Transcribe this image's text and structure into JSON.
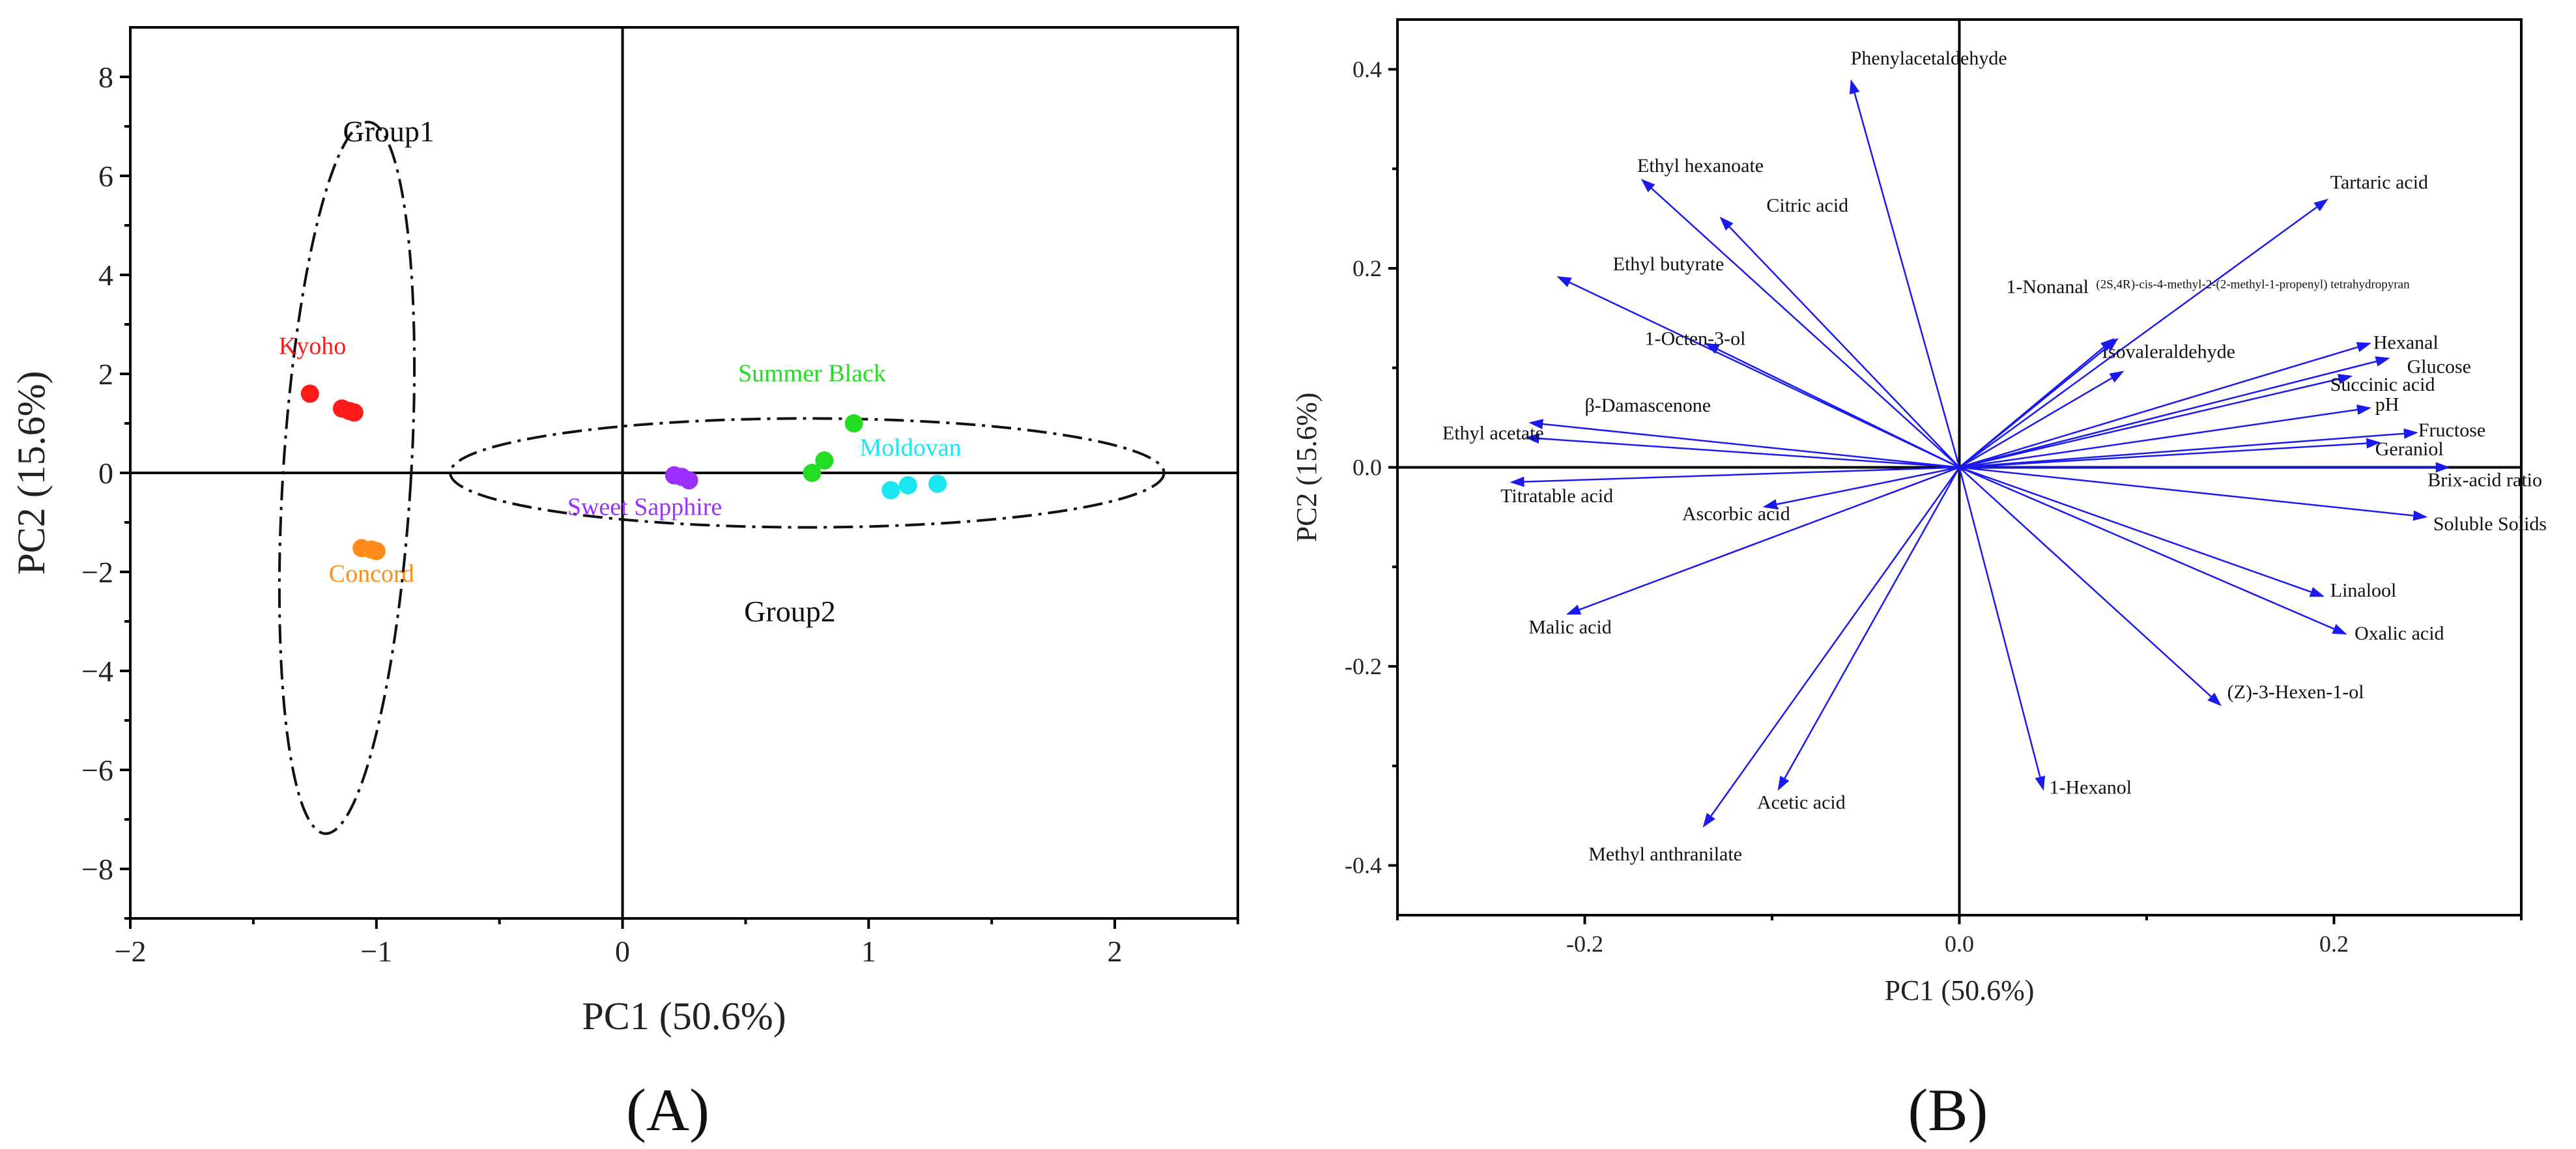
{
  "panel_labels": [
    "(A)",
    "(B)"
  ],
  "colors": {
    "Kyoho": "#ff1a1a",
    "Concord": "#ff8c1a",
    "Sweet Sapphire": "#9b30ff",
    "Summer Black": "#22dd22",
    "Moldovan": "#1ae6f0",
    "arrow": "#1a1aee"
  },
  "chart_data": [
    {
      "type": "scatter",
      "panel": "(A)",
      "xlabel": "PC1 (50.6%)",
      "ylabel": "PC2 (15.6%)",
      "xlim": [
        -2,
        2.5
      ],
      "ylim": [
        -9,
        9
      ],
      "xticks": [
        "−2",
        "−1",
        "0",
        "1",
        "2"
      ],
      "yticks": [
        "−8",
        "−6",
        "−4",
        "−2",
        "0",
        "2",
        "4",
        "6",
        "8"
      ],
      "groups": [
        {
          "label": "Group1",
          "center": [
            -1.12,
            -0.1
          ],
          "semi_axes": [
            0.26,
            7.2
          ],
          "tilt_deg": 3.5,
          "label_at": [
            -0.95,
            6.7
          ]
        },
        {
          "label": "Group2",
          "center": [
            0.75,
            0.0
          ],
          "semi_axes": [
            1.45,
            1.1
          ],
          "tilt_deg": 0,
          "label_at": [
            0.68,
            -3.0
          ]
        }
      ],
      "series": [
        {
          "name": "Kyoho",
          "label_at": [
            -1.26,
            2.4
          ],
          "points": [
            [
              -1.27,
              1.6
            ],
            [
              -1.14,
              1.3
            ],
            [
              -1.11,
              1.25
            ],
            [
              -1.09,
              1.22
            ]
          ]
        },
        {
          "name": "Concord",
          "label_at": [
            -1.02,
            -2.2
          ],
          "points": [
            [
              -1.06,
              -1.52
            ],
            [
              -1.02,
              -1.55
            ],
            [
              -1.0,
              -1.58
            ]
          ]
        },
        {
          "name": "Sweet Sapphire",
          "label_at": [
            0.09,
            -0.85
          ],
          "points": [
            [
              0.21,
              -0.05
            ],
            [
              0.24,
              -0.08
            ],
            [
              0.27,
              -0.15
            ]
          ]
        },
        {
          "name": "Summer Black",
          "label_at": [
            0.77,
            1.85
          ],
          "points": [
            [
              0.94,
              1.0
            ],
            [
              0.82,
              0.25
            ],
            [
              0.77,
              0.0
            ]
          ]
        },
        {
          "name": "Moldovan",
          "label_at": [
            1.17,
            0.35
          ],
          "points": [
            [
              1.09,
              -0.35
            ],
            [
              1.16,
              -0.25
            ],
            [
              1.28,
              -0.22
            ]
          ]
        }
      ]
    },
    {
      "type": "biplot",
      "panel": "(B)",
      "xlabel": "PC1 (50.6%)",
      "ylabel": "PC2 (15.6%)",
      "xlim": [
        -0.3,
        0.3
      ],
      "ylim": [
        -0.45,
        0.45
      ],
      "xticks": [
        "-0.2",
        "0.0",
        "0.2"
      ],
      "yticks": [
        "-0.4",
        "-0.2",
        "0.0",
        "0.2",
        "0.4"
      ],
      "loadings": [
        {
          "name": "Phenylacetaldehyde",
          "x": -0.058,
          "y": 0.39,
          "label_at": [
            -0.058,
            0.405
          ]
        },
        {
          "name": "Ethyl hexanoate",
          "x": -0.17,
          "y": 0.29,
          "label_at": [
            -0.172,
            0.297
          ]
        },
        {
          "name": "Citric acid",
          "x": -0.128,
          "y": 0.252,
          "label_at": [
            -0.103,
            0.257
          ]
        },
        {
          "name": "Ethyl butyrate",
          "x": -0.215,
          "y": 0.192,
          "label_at": [
            -0.185,
            0.198
          ]
        },
        {
          "name": "1-Octen-3-ol",
          "x": -0.136,
          "y": 0.125,
          "label_at": [
            -0.168,
            0.123
          ]
        },
        {
          "name": "β-Damascenone",
          "x": -0.23,
          "y": 0.045,
          "label_at": [
            -0.2,
            0.056
          ]
        },
        {
          "name": "Ethyl acetate",
          "x": -0.232,
          "y": 0.03,
          "label_at": [
            -0.276,
            0.028
          ]
        },
        {
          "name": "Titratable acid",
          "x": -0.24,
          "y": -0.015,
          "label_at": [
            -0.245,
            -0.035
          ]
        },
        {
          "name": "Ascorbic acid",
          "x": -0.105,
          "y": -0.04,
          "label_at": [
            -0.148,
            -0.053
          ]
        },
        {
          "name": "Malic acid",
          "x": -0.21,
          "y": -0.148,
          "label_at": [
            -0.23,
            -0.167
          ]
        },
        {
          "name": "Methyl anthranilate",
          "x": -0.137,
          "y": -0.362,
          "label_at": [
            -0.198,
            -0.395
          ]
        },
        {
          "name": "Acetic acid",
          "x": -0.097,
          "y": -0.325,
          "label_at": [
            -0.108,
            -0.343
          ]
        },
        {
          "name": "1-Hexanol",
          "x": 0.045,
          "y": -0.325,
          "label_at": [
            0.048,
            -0.328
          ]
        },
        {
          "name": "(Z)-3-Hexen-1-ol",
          "x": 0.14,
          "y": -0.24,
          "label_at": [
            0.143,
            -0.232
          ]
        },
        {
          "name": "Oxalic acid",
          "x": 0.207,
          "y": -0.168,
          "label_at": [
            0.211,
            -0.173
          ]
        },
        {
          "name": "Linalool",
          "x": 0.195,
          "y": -0.13,
          "label_at": [
            0.198,
            -0.13
          ]
        },
        {
          "name": "Soluble Solids",
          "x": 0.25,
          "y": -0.05,
          "label_at": [
            0.253,
            -0.063
          ]
        },
        {
          "name": "Brix-acid ratio",
          "x": 0.262,
          "y": 0.0,
          "label_at": [
            0.25,
            -0.019
          ]
        },
        {
          "name": "Geraniol",
          "x": 0.225,
          "y": 0.025,
          "label_at": [
            0.222,
            0.012
          ]
        },
        {
          "name": "Fructose",
          "x": 0.245,
          "y": 0.035,
          "label_at": [
            0.245,
            0.031
          ]
        },
        {
          "name": "pH",
          "x": 0.22,
          "y": 0.06,
          "label_at": [
            0.222,
            0.057
          ]
        },
        {
          "name": "Succinic acid",
          "x": 0.21,
          "y": 0.092,
          "label_at": [
            0.198,
            0.077
          ]
        },
        {
          "name": "Glucose",
          "x": 0.23,
          "y": 0.11,
          "label_at": [
            0.239,
            0.095
          ]
        },
        {
          "name": "Hexanal",
          "x": 0.22,
          "y": 0.125,
          "label_at": [
            0.221,
            0.119
          ]
        },
        {
          "name": "Tartaric acid",
          "x": 0.197,
          "y": 0.27,
          "label_at": [
            0.198,
            0.28
          ]
        },
        {
          "name": "Isovaleraldehyde",
          "x": 0.088,
          "y": 0.097,
          "label_at": [
            0.076,
            0.11
          ]
        },
        {
          "name": "1-Nonanal",
          "x": 0.085,
          "y": 0.13,
          "label_at": [
            0.025,
            0.175
          ]
        },
        {
          "name": "(2S,4R)-cis-4-methyl-2-(2-methyl-1-propenyl) tetrahydropyran",
          "x": 0.083,
          "y": 0.13,
          "label_at": [
            0.073,
            0.18
          ],
          "small": true
        }
      ]
    }
  ]
}
